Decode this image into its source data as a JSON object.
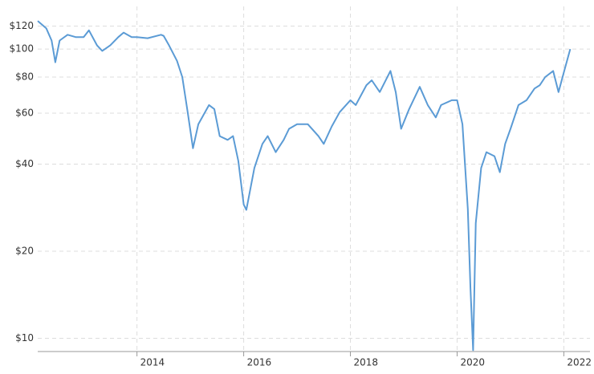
{
  "chart_data": {
    "type": "line",
    "log_y": true,
    "grid": true,
    "x": [
      2012.14,
      2012.3,
      2012.4,
      2012.47,
      2012.55,
      2012.7,
      2012.85,
      2013.0,
      2013.1,
      2013.25,
      2013.35,
      2013.5,
      2013.65,
      2013.75,
      2013.9,
      2014.0,
      2014.2,
      2014.45,
      2014.5,
      2014.6,
      2014.75,
      2014.85,
      2014.95,
      2015.05,
      2015.15,
      2015.35,
      2015.45,
      2015.55,
      2015.7,
      2015.8,
      2015.9,
      2016.0,
      2016.05,
      2016.2,
      2016.35,
      2016.45,
      2016.6,
      2016.75,
      2016.85,
      2017.0,
      2017.2,
      2017.4,
      2017.5,
      2017.65,
      2017.8,
      2018.0,
      2018.1,
      2018.3,
      2018.4,
      2018.55,
      2018.75,
      2018.85,
      2018.95,
      2019.1,
      2019.3,
      2019.45,
      2019.6,
      2019.7,
      2019.9,
      2020.0,
      2020.1,
      2020.2,
      2020.25,
      2020.3,
      2020.35,
      2020.45,
      2020.55,
      2020.7,
      2020.8,
      2020.9,
      2021.0,
      2021.15,
      2021.3,
      2021.45,
      2021.55,
      2021.65,
      2021.8,
      2021.9,
      2022.0,
      2022.12
    ],
    "series": [
      {
        "color": "#5b9bd5",
        "values": [
          125,
          118,
          107,
          90,
          107,
          112,
          110,
          110,
          116,
          103,
          98.5,
          103,
          110,
          114,
          110,
          110,
          109,
          112,
          111,
          103,
          91,
          80,
          60.5,
          45.4,
          55,
          64,
          62,
          50,
          48.5,
          50,
          41,
          29,
          27.8,
          38.8,
          47,
          50,
          44,
          48.5,
          53,
          55,
          55,
          50,
          47,
          54,
          60.5,
          66.5,
          64,
          75,
          78,
          71,
          84,
          71,
          53,
          62,
          74,
          64,
          58,
          64,
          66.5,
          66.5,
          55,
          28,
          14.9,
          9.1,
          25,
          38.8,
          44,
          42.6,
          37.5,
          47,
          53,
          64,
          66.5,
          73,
          75,
          80,
          84,
          71,
          83,
          100
        ]
      }
    ],
    "xlim": [
      2012.14,
      2022.49
    ],
    "xticks": [
      2014,
      2016,
      2018,
      2020,
      2022
    ],
    "ylim": [
      9,
      130
    ],
    "yticks": [
      {
        "value": 10,
        "label": "$10"
      },
      {
        "value": 20,
        "label": "$20"
      },
      {
        "value": 40,
        "label": "$40"
      },
      {
        "value": 60,
        "label": "$60"
      },
      {
        "value": 80,
        "label": "$80"
      },
      {
        "value": 100,
        "label": "$100"
      },
      {
        "value": 120,
        "label": "$120"
      }
    ]
  }
}
